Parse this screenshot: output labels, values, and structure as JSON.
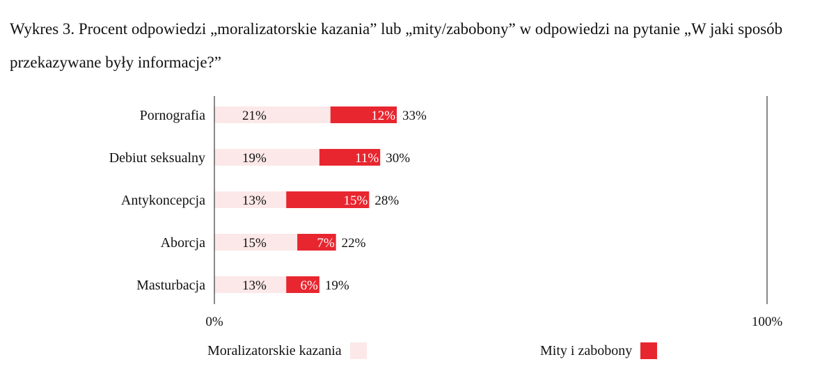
{
  "title": "Wykres 3. Procent odpowiedzi „moralizatorskie kazania” lub „mity/zabobony” w odpowiedzi na pytanie „W jaki sposób przekazywane były informacje?”",
  "chart_data": {
    "type": "bar",
    "orientation": "horizontal",
    "stacked": true,
    "categories": [
      "Pornografia",
      "Debiut seksualny",
      "Antykoncepcja",
      "Aborcja",
      "Masturbacja"
    ],
    "series": [
      {
        "name": "Moralizatorskie kazania",
        "values": [
          21,
          19,
          13,
          15,
          13
        ],
        "color": "#fce8e8"
      },
      {
        "name": "Mity i zabobony",
        "values": [
          12,
          11,
          15,
          7,
          6
        ],
        "color": "#e8262f"
      }
    ],
    "totals": [
      33,
      30,
      28,
      22,
      19
    ],
    "value_suffix": "%",
    "xlim": [
      0,
      100
    ],
    "xticks": [
      "0%",
      "100%"
    ],
    "legend_position": "bottom",
    "grid": false
  }
}
